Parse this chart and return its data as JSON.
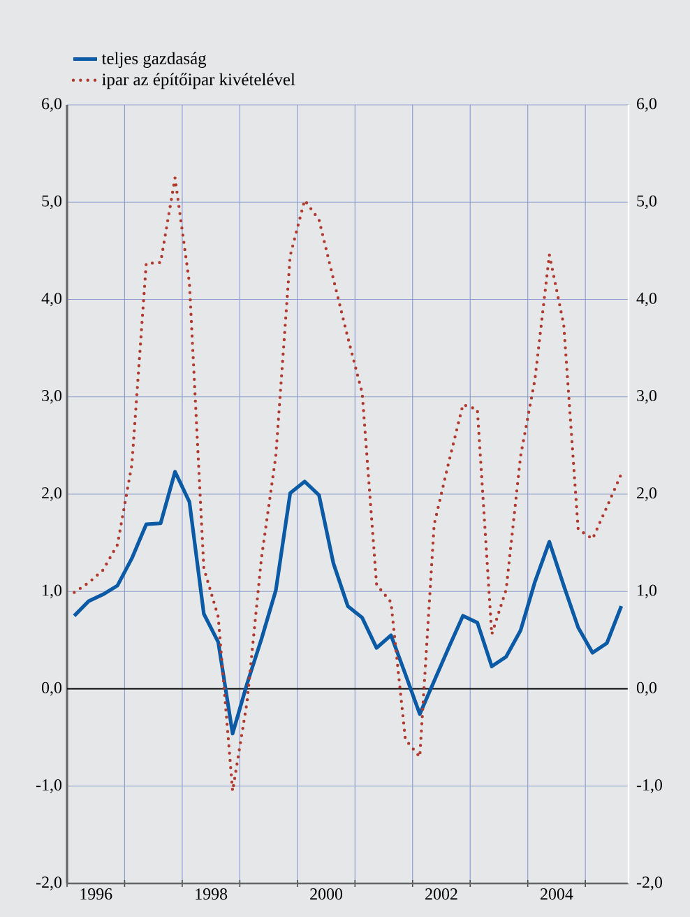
{
  "chart_data": {
    "type": "line",
    "x": [
      1996.125,
      1996.375,
      1996.625,
      1996.875,
      1997.125,
      1997.375,
      1997.625,
      1997.875,
      1998.125,
      1998.375,
      1998.625,
      1998.875,
      1999.125,
      1999.375,
      1999.625,
      1999.875,
      2000.125,
      2000.375,
      2000.625,
      2000.875,
      2001.125,
      2001.375,
      2001.625,
      2001.875,
      2002.125,
      2002.375,
      2002.625,
      2002.875,
      2003.125,
      2003.375,
      2003.625,
      2003.875,
      2004.125,
      2004.375,
      2004.625,
      2004.875,
      2005.125,
      2005.375,
      2005.625
    ],
    "series": [
      {
        "name": "teljes gazdaság",
        "color": "#0b5aa5",
        "line_style": "solid",
        "values": [
          0.75,
          0.9,
          0.97,
          1.06,
          1.34,
          1.69,
          1.7,
          2.23,
          1.92,
          0.77,
          0.48,
          -0.46,
          0.05,
          0.51,
          1.01,
          2.01,
          2.13,
          1.99,
          1.29,
          0.85,
          0.73,
          0.42,
          0.55,
          0.15,
          -0.26,
          0.08,
          0.42,
          0.75,
          0.68,
          0.23,
          0.33,
          0.6,
          1.1,
          1.51,
          1.06,
          0.63,
          0.37,
          0.47,
          0.85
        ]
      },
      {
        "name": "ipar az építőipar kivételével",
        "color": "#b03a2e",
        "line_style": "dotted",
        "values": [
          0.99,
          1.09,
          1.22,
          1.48,
          2.3,
          4.37,
          4.38,
          5.25,
          4.17,
          1.24,
          0.74,
          -1.05,
          -0.14,
          1.34,
          2.39,
          4.45,
          5.02,
          4.82,
          4.21,
          3.61,
          3.04,
          1.07,
          0.89,
          -0.52,
          -0.7,
          1.69,
          2.32,
          2.92,
          2.87,
          0.56,
          1.02,
          2.39,
          3.18,
          4.46,
          3.74,
          1.64,
          1.54,
          1.87,
          2.21
        ]
      }
    ],
    "xlim": [
      1996,
      2005.75
    ],
    "xticks": [
      {
        "value": 1996,
        "label": null
      },
      {
        "value": 1996.5,
        "label": "1996"
      },
      {
        "value": 1997,
        "label": null
      },
      {
        "value": 1998,
        "label": null
      },
      {
        "value": 1998.5,
        "label": "1998"
      },
      {
        "value": 1999,
        "label": null
      },
      {
        "value": 2000,
        "label": null
      },
      {
        "value": 2000.5,
        "label": "2000"
      },
      {
        "value": 2001,
        "label": null
      },
      {
        "value": 2002,
        "label": null
      },
      {
        "value": 2002.5,
        "label": "2002"
      },
      {
        "value": 2003,
        "label": null
      },
      {
        "value": 2004,
        "label": null
      },
      {
        "value": 2004.5,
        "label": "2004"
      },
      {
        "value": 2005,
        "label": null
      }
    ],
    "ylim": [
      -2,
      6
    ],
    "yticks": [
      {
        "value": -2,
        "label": "-2,0"
      },
      {
        "value": -1,
        "label": "-1,0"
      },
      {
        "value": 0,
        "label": "0,0"
      },
      {
        "value": 1,
        "label": "1,0"
      },
      {
        "value": 2,
        "label": "2,0"
      },
      {
        "value": 3,
        "label": "3,0"
      },
      {
        "value": 4,
        "label": "4,0"
      },
      {
        "value": 5,
        "label": "5,0"
      },
      {
        "value": 6,
        "label": "6,0"
      }
    ],
    "y2lim": [
      -2,
      6
    ],
    "y2ticks": [
      {
        "value": -2,
        "label": "-2,0"
      },
      {
        "value": -1,
        "label": "-1,0"
      },
      {
        "value": 0,
        "label": "0,0"
      },
      {
        "value": 1,
        "label": "1,0"
      },
      {
        "value": 2,
        "label": "2,0"
      },
      {
        "value": 3,
        "label": "3,0"
      },
      {
        "value": 4,
        "label": "4,0"
      },
      {
        "value": 5,
        "label": "5,0"
      },
      {
        "value": 6,
        "label": "6,0"
      }
    ],
    "ref_lines": [
      {
        "axis": "y",
        "value": 0,
        "color": "#000000"
      }
    ],
    "grid": true,
    "legend": "top",
    "marker": "none"
  }
}
